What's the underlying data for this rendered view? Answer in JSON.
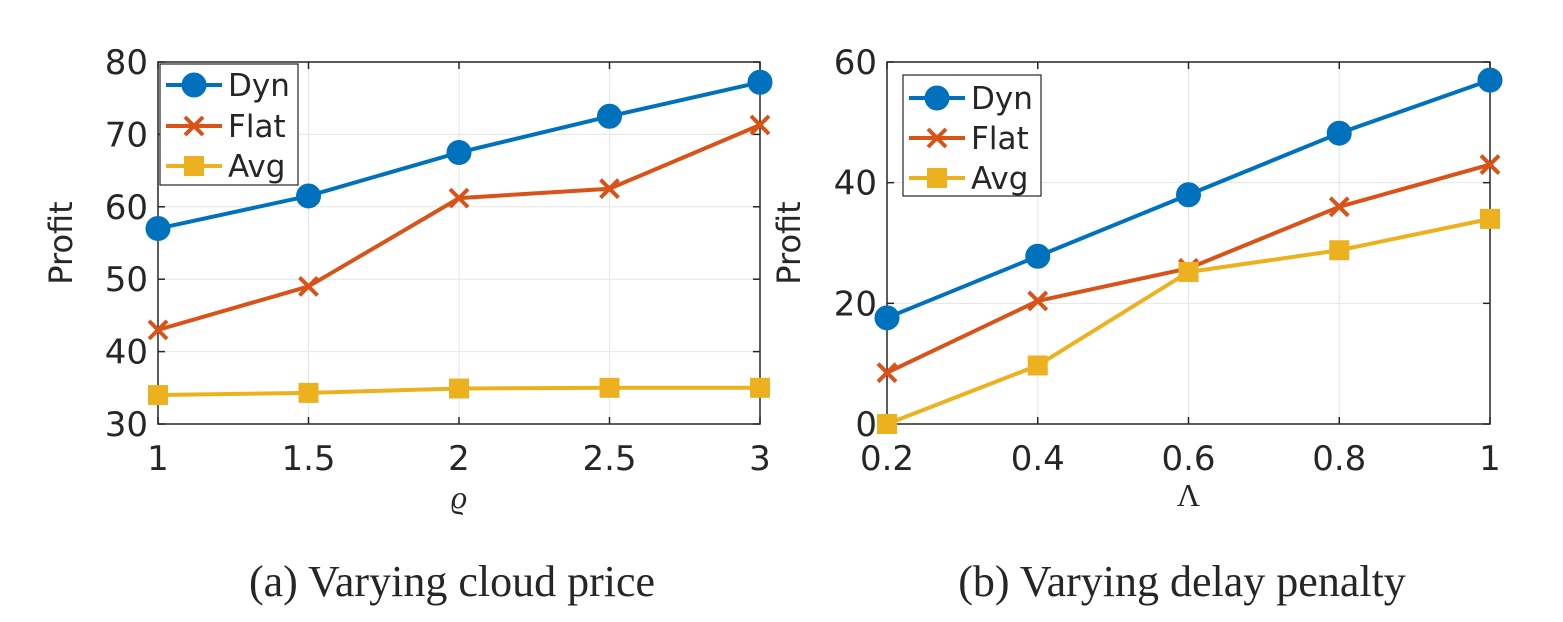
{
  "colors": {
    "dyn": "#0072BD",
    "flat": "#D95319",
    "avg": "#EDB120",
    "axis": "#262626",
    "grid": "#e6e6e6"
  },
  "chart_data": [
    {
      "type": "line",
      "caption": "(a) Varying cloud price",
      "xlabel": "ϱ",
      "ylabel": "Profit",
      "x": [
        1,
        1.5,
        2,
        2.5,
        3
      ],
      "x_tick_labels": [
        "1",
        "1.5",
        "2",
        "2.5",
        "3"
      ],
      "y_ticks": [
        30,
        40,
        50,
        60,
        70,
        80
      ],
      "y_tick_labels": [
        "30",
        "40",
        "50",
        "60",
        "70",
        "80"
      ],
      "xlim": [
        1,
        3
      ],
      "ylim": [
        30,
        80
      ],
      "grid": true,
      "legend_position": "top-left",
      "series": [
        {
          "name": "Dyn",
          "marker": "circle",
          "values": [
            57,
            61.5,
            67.5,
            72.5,
            77.2
          ]
        },
        {
          "name": "Flat",
          "marker": "x",
          "values": [
            43,
            49,
            61.2,
            62.5,
            71.3
          ]
        },
        {
          "name": "Avg",
          "marker": "square",
          "values": [
            34,
            34.3,
            34.9,
            35,
            35
          ]
        }
      ]
    },
    {
      "type": "line",
      "caption": "(b) Varying delay penalty",
      "xlabel": "Λ",
      "ylabel": "Profit",
      "x": [
        0.2,
        0.4,
        0.6,
        0.8,
        1
      ],
      "x_tick_labels": [
        "0.2",
        "0.4",
        "0.6",
        "0.8",
        "1"
      ],
      "y_ticks": [
        0,
        20,
        40,
        60
      ],
      "y_tick_labels": [
        "0",
        "20",
        "40",
        "60"
      ],
      "xlim": [
        0.2,
        1
      ],
      "ylim": [
        0,
        60
      ],
      "grid": true,
      "legend_position": "top-left",
      "series": [
        {
          "name": "Dyn",
          "marker": "circle",
          "values": [
            17.6,
            27.8,
            38,
            48.2,
            57
          ]
        },
        {
          "name": "Flat",
          "marker": "x",
          "values": [
            8.5,
            20.4,
            25.8,
            36,
            43
          ]
        },
        {
          "name": "Avg",
          "marker": "square",
          "values": [
            0,
            9.7,
            25.2,
            28.8,
            34
          ]
        }
      ]
    }
  ]
}
